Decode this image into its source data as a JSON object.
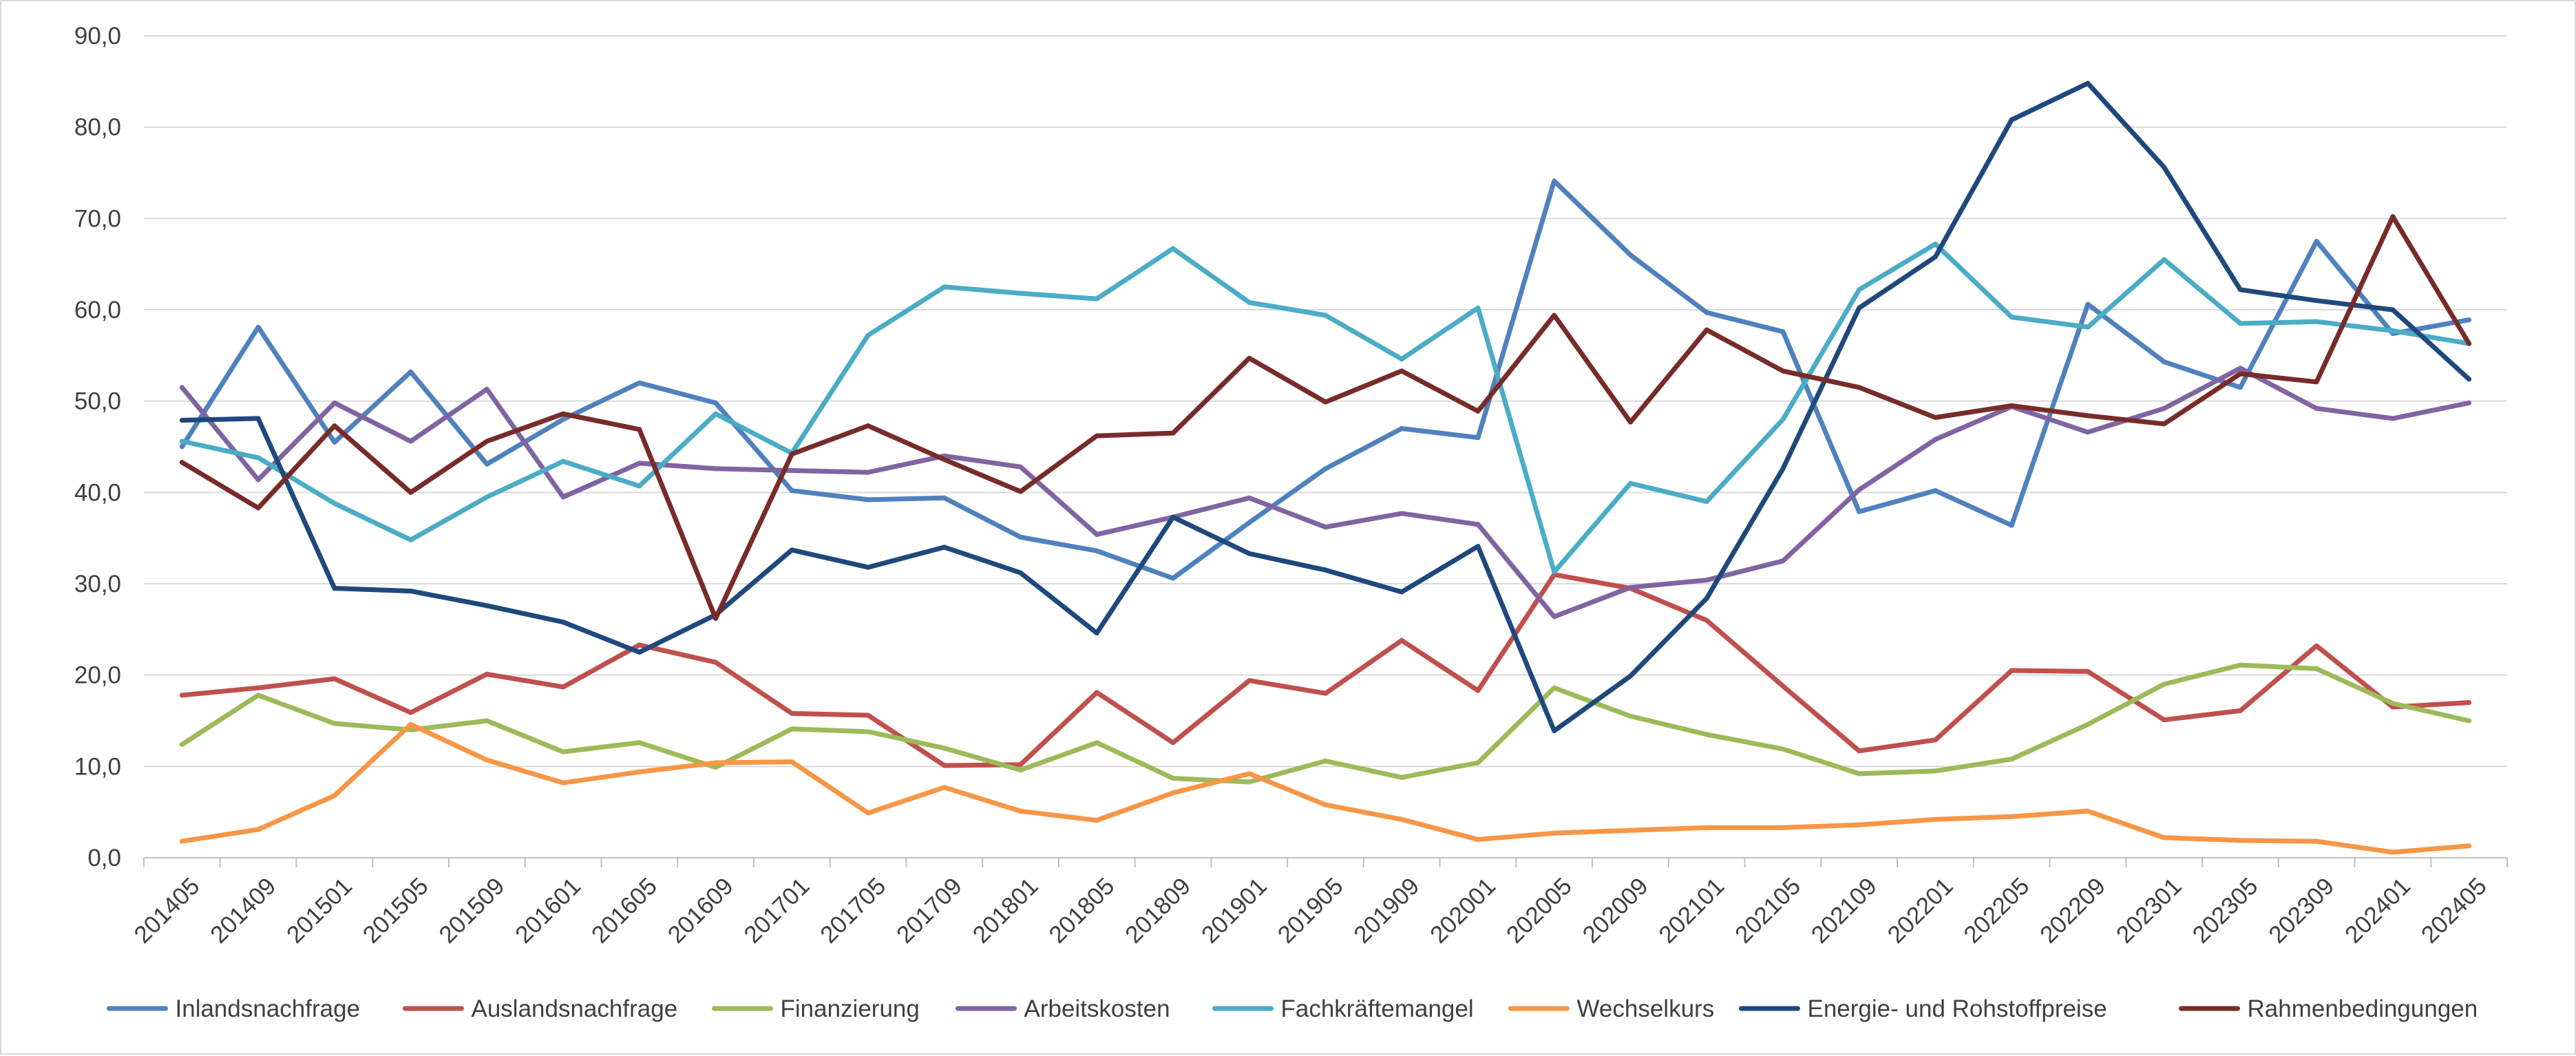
{
  "chart_data": {
    "type": "line",
    "title": "",
    "xlabel": "",
    "ylabel": "",
    "ylim": [
      0,
      90
    ],
    "y_ticks": [
      "0,0",
      "10,0",
      "20,0",
      "30,0",
      "40,0",
      "50,0",
      "60,0",
      "70,0",
      "80,0",
      "90,0"
    ],
    "grid": "horizontal",
    "legend_position": "bottom",
    "categories": [
      "201405",
      "201409",
      "201501",
      "201505",
      "201509",
      "201601",
      "201605",
      "201609",
      "201701",
      "201705",
      "201709",
      "201801",
      "201805",
      "201809",
      "201901",
      "201905",
      "201909",
      "202001",
      "202005",
      "202009",
      "202101",
      "202105",
      "202109",
      "202201",
      "202205",
      "202209",
      "202301",
      "202305",
      "202309",
      "202401",
      "202405"
    ],
    "series": [
      {
        "name": "Inlandsnachfrage",
        "color": "#4F81BD",
        "values": [
          45,
          58.1,
          45.5,
          53.2,
          43.1,
          48,
          52,
          49.8,
          40.2,
          39.2,
          39.4,
          35.1,
          33.6,
          30.6,
          36.7,
          42.6,
          47,
          46,
          74.1,
          66,
          59.7,
          57.6,
          37.9,
          40.2,
          36.4,
          60.6,
          54.3,
          51.5,
          67.5,
          57.4,
          58.9
        ]
      },
      {
        "name": "Auslandsnachfrage",
        "color": "#C0504D",
        "values": [
          17.8,
          18.6,
          19.6,
          15.9,
          20.1,
          18.7,
          23.3,
          21.4,
          15.8,
          15.6,
          10.1,
          10.2,
          18.1,
          12.6,
          19.4,
          18,
          23.8,
          18.3,
          31,
          29.5,
          26,
          18.8,
          11.7,
          12.9,
          20.5,
          20.4,
          15.1,
          16.1,
          23.2,
          16.5,
          17
        ]
      },
      {
        "name": "Finanzierung",
        "color": "#9BBB59",
        "values": [
          12.4,
          17.8,
          14.7,
          14,
          15,
          11.6,
          12.6,
          9.9,
          14.1,
          13.8,
          12,
          9.6,
          12.6,
          8.7,
          8.3,
          10.6,
          8.8,
          10.4,
          18.6,
          15.5,
          13.5,
          11.9,
          9.2,
          9.5,
          10.8,
          14.6,
          19,
          21.1,
          20.7,
          16.9,
          15
        ]
      },
      {
        "name": "Arbeitskosten",
        "color": "#8064A2",
        "values": [
          51.5,
          41.4,
          49.8,
          45.6,
          51.3,
          39.5,
          43.2,
          42.6,
          42.4,
          42.2,
          44,
          42.8,
          35.4,
          37.3,
          39.4,
          36.2,
          37.7,
          36.5,
          26.4,
          29.6,
          30.4,
          32.5,
          40.3,
          45.8,
          49.4,
          46.6,
          49.2,
          53.6,
          49.2,
          48.1,
          49.8
        ]
      },
      {
        "name": "Fachkräftemangel",
        "color": "#4BACC6",
        "values": [
          45.6,
          43.8,
          38.8,
          34.8,
          39.5,
          43.4,
          40.7,
          48.6,
          44.3,
          57.2,
          62.5,
          61.8,
          61.2,
          66.7,
          60.8,
          59.4,
          54.6,
          60.2,
          31.3,
          41,
          39,
          48,
          62.2,
          67.2,
          59.2,
          58.1,
          65.5,
          58.5,
          58.7,
          57.7,
          56.3
        ]
      },
      {
        "name": "Wechselkurs",
        "color": "#F79646",
        "values": [
          1.8,
          3.1,
          6.8,
          14.6,
          10.7,
          8.2,
          9.4,
          10.4,
          10.5,
          4.9,
          7.7,
          5.1,
          4.1,
          7.1,
          9.2,
          5.8,
          4.2,
          2,
          2.7,
          3,
          3.3,
          3.3,
          3.6,
          4.2,
          4.5,
          5.1,
          2.2,
          1.9,
          1.8,
          0.6,
          1.3
        ]
      },
      {
        "name": "Energie- und Rohstoffpreise",
        "color": "#1F497D",
        "values": [
          47.9,
          48.1,
          29.5,
          29.2,
          27.6,
          25.8,
          22.5,
          26.6,
          33.7,
          31.8,
          34,
          31.2,
          24.6,
          37.3,
          33.3,
          31.5,
          29.1,
          34.1,
          13.9,
          19.9,
          28.4,
          42.6,
          60.2,
          65.8,
          80.8,
          84.8,
          75.6,
          62.2,
          61,
          60,
          52.4
        ]
      },
      {
        "name": "Rahmenbedingungen",
        "color": "#772C2A",
        "values": [
          43.3,
          38.3,
          47.3,
          40,
          45.6,
          48.6,
          46.9,
          26.2,
          44.2,
          47.3,
          43.6,
          40.1,
          46.2,
          46.5,
          54.7,
          49.9,
          53.3,
          48.9,
          59.4,
          47.7,
          57.8,
          53.3,
          51.5,
          48.2,
          49.5,
          48.4,
          47.5,
          53,
          52.1,
          70.2,
          56.3
        ]
      }
    ]
  }
}
